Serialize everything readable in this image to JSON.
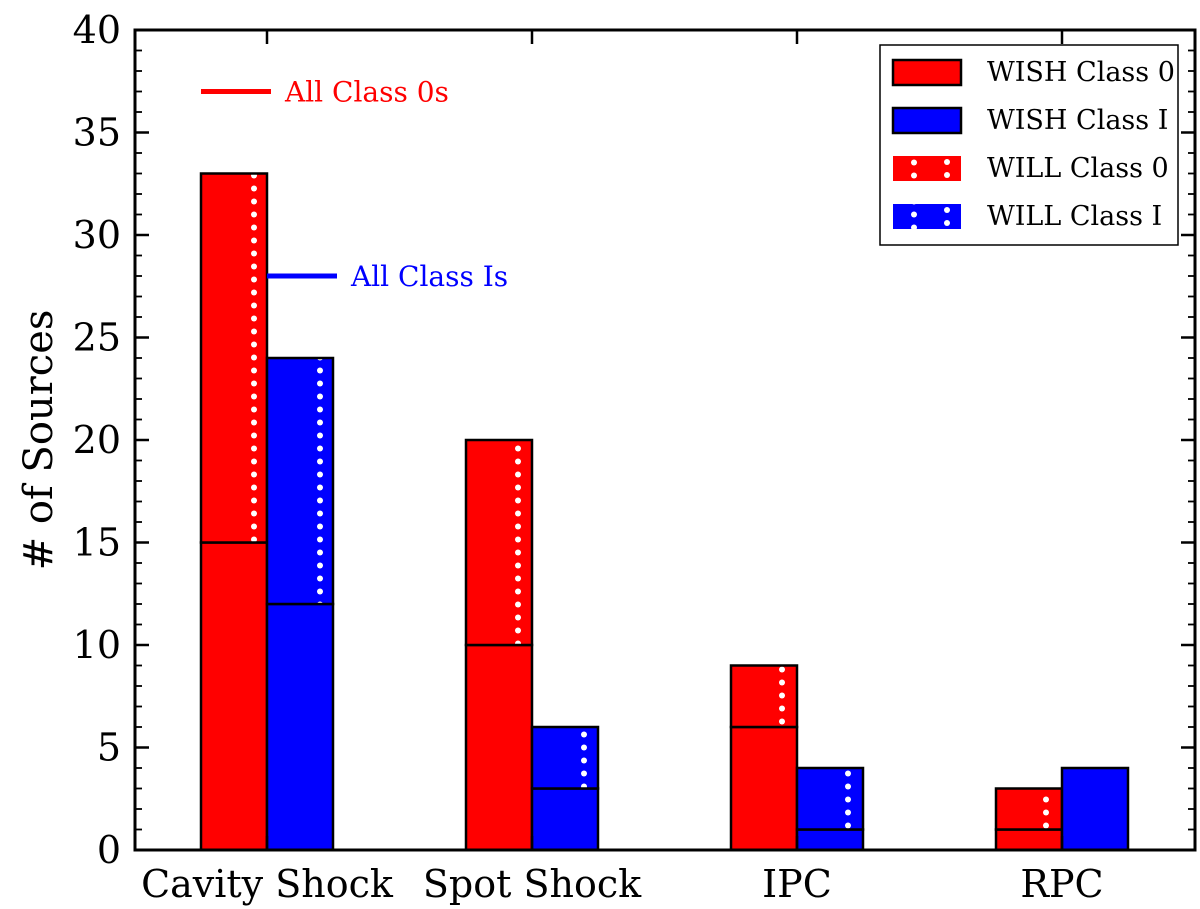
{
  "chart_data": {
    "type": "bar",
    "stacked": true,
    "title": "",
    "xlabel": "",
    "ylabel": "# of Sources",
    "ylim": [
      0,
      40
    ],
    "yticks": [
      0,
      5,
      10,
      15,
      20,
      25,
      30,
      35,
      40
    ],
    "categories": [
      "Cavity Shock",
      "Spot Shock",
      "IPC",
      "RPC"
    ],
    "series": [
      {
        "name": "WISH Class 0",
        "group": "Class 0",
        "pattern": "solid",
        "color": "#ff0000",
        "values": [
          15,
          10,
          6,
          1
        ]
      },
      {
        "name": "WILL Class 0",
        "group": "Class 0",
        "pattern": "dotted",
        "color": "#ff0000",
        "values": [
          18,
          10,
          3,
          2
        ]
      },
      {
        "name": "WISH Class I",
        "group": "Class I",
        "pattern": "solid",
        "color": "#0000ff",
        "values": [
          12,
          3,
          1,
          4
        ]
      },
      {
        "name": "WILL Class I",
        "group": "Class I",
        "pattern": "dotted",
        "color": "#0000ff",
        "values": [
          12,
          3,
          3,
          0
        ]
      }
    ],
    "reference_lines": [
      {
        "label": "All Class 0s",
        "value": 37,
        "color": "#ff0000",
        "category": "Cavity Shock",
        "group": "Class 0"
      },
      {
        "label": "All Class Is",
        "value": 28,
        "color": "#0000ff",
        "category": "Cavity Shock",
        "group": "Class I"
      }
    ],
    "legend": {
      "position": "top-right",
      "entries": [
        "WISH Class 0",
        "WISH Class I",
        "WILL Class 0",
        "WILL Class I"
      ]
    }
  }
}
